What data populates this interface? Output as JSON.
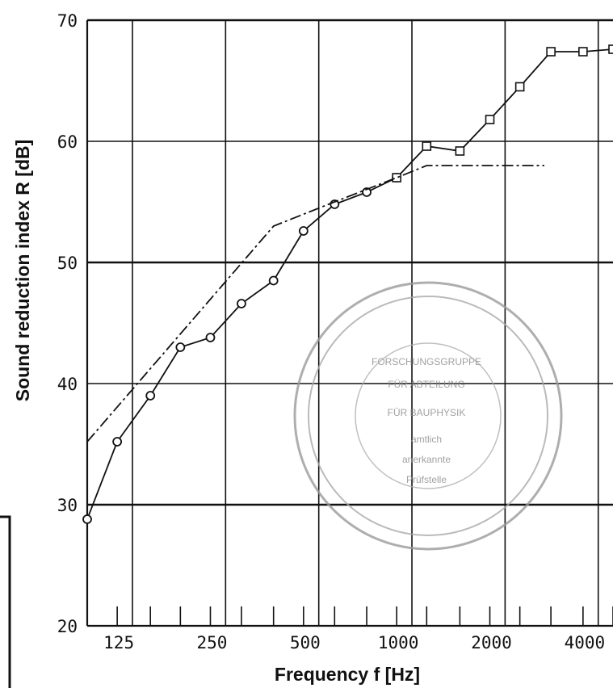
{
  "chart_data": {
    "type": "line",
    "title": "",
    "xlabel": "Frequency  f  [Hz]",
    "ylabel": "Sound reduction index  R  [dB]",
    "x_scale": "log",
    "xlim": [
      100,
      5000
    ],
    "ylim": [
      20,
      70
    ],
    "x_tick_labels": [
      "125",
      "250",
      "500",
      "1000",
      "2000",
      "4000"
    ],
    "x_tick_values": [
      125,
      250,
      500,
      1000,
      2000,
      4000
    ],
    "y_ticks": [
      20,
      30,
      40,
      50,
      60,
      70
    ],
    "y_tick_labels": [
      "20",
      "30",
      "40",
      "50",
      "60",
      "70"
    ],
    "grid": true,
    "x": [
      100,
      125,
      160,
      200,
      250,
      315,
      400,
      500,
      630,
      800,
      1000,
      1250,
      1600,
      2000,
      2500,
      3150,
      4000,
      5000
    ],
    "series": [
      {
        "marker": "circle",
        "values": [
          28.8,
          35.2,
          39.0,
          43.0,
          43.8,
          46.6,
          48.5,
          52.6,
          54.8,
          55.8,
          57.0,
          null,
          null,
          null,
          null,
          null,
          null,
          null
        ]
      },
      {
        "marker": "square",
        "values": [
          null,
          null,
          null,
          null,
          null,
          null,
          null,
          null,
          null,
          null,
          57.0,
          59.6,
          59.2,
          61.8,
          64.5,
          67.4,
          67.4,
          67.6
        ]
      },
      {
        "marker": "none",
        "style": "dash-dot",
        "x": [
          100,
          400,
          630,
          1000,
          1250,
          3000
        ],
        "values": [
          35.2,
          53.0,
          55.0,
          57.0,
          58.0,
          58.0
        ]
      }
    ],
    "annotations": [
      "FORSCHUNGSGRUPPE",
      "FÜR ABTEILUNG",
      "FÜR BAUPHYSIK",
      "amtlich",
      "anerkannte",
      "Prüfstelle"
    ]
  }
}
